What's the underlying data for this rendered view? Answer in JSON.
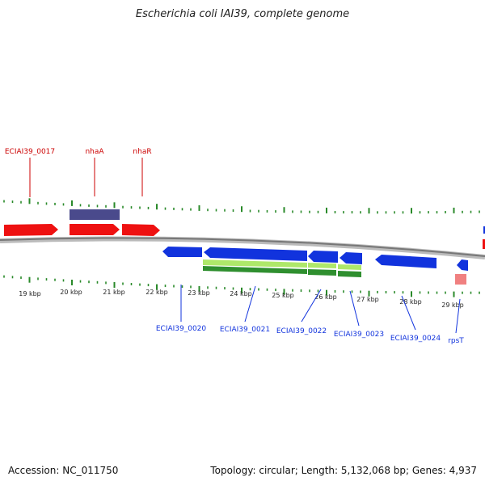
{
  "title": "Escherichia coli IAI39, complete genome",
  "footer": {
    "accession": "Accession: NC_011750",
    "stats": "Topology: circular; Length: 5,132,068 bp; Genes: 4,937"
  },
  "colors": {
    "forward": "#ee1111",
    "reverse": "#1133dd",
    "rna_purple": "#4a4a8c",
    "green_light": "#aee86a",
    "green_dark": "#2f8f2f",
    "pink": "#f08080",
    "ticks": "#2a8a2a",
    "backbone": "#888888"
  },
  "scale": {
    "labels": [
      "19 kbp",
      "20 kbp",
      "21 kbp",
      "22 kbp",
      "23 kbp",
      "24 kbp",
      "25 kbp",
      "26 kbp",
      "27 kbp",
      "28 kbp",
      "29 kbp"
    ]
  },
  "genes_top": [
    {
      "label": "ECIAI39_0017"
    },
    {
      "label": "nhaA"
    },
    {
      "label": "nhaR"
    }
  ],
  "genes_bottom": [
    {
      "label": "ECIAI39_0020"
    },
    {
      "label": "ECIAI39_0021"
    },
    {
      "label": "ECIAI39_0022"
    },
    {
      "label": "ECIAI39_0023"
    },
    {
      "label": "ECIAI39_0024"
    },
    {
      "label": "rpsT"
    }
  ]
}
